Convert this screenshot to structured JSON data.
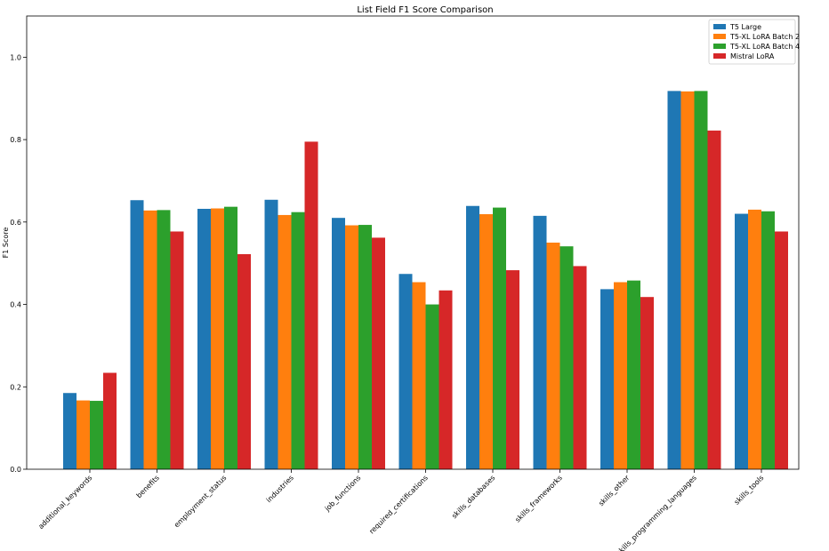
{
  "chart_data": {
    "type": "bar",
    "title": "List Field F1 Score Comparison",
    "xlabel": "",
    "ylabel": "F1 Score",
    "ylim": [
      0,
      1.1
    ],
    "yticks": [
      0.0,
      0.2,
      0.4,
      0.6,
      0.8,
      1.0
    ],
    "ytick_labels": [
      "0.0",
      "0.2",
      "0.4",
      "0.6",
      "0.8",
      "1.0"
    ],
    "legend_position": "top-right",
    "categories": [
      "additional_keywords",
      "benefits",
      "employment_status",
      "industries",
      "job_functions",
      "required_certifications",
      "skills_databases",
      "skills_frameworks",
      "skills_other",
      "skills_programming_languages",
      "skills_tools"
    ],
    "series": [
      {
        "name": "T5 Large",
        "color": "#1f77b4",
        "values": [
          0.185,
          0.653,
          0.632,
          0.654,
          0.61,
          0.474,
          0.639,
          0.615,
          0.437,
          0.918,
          0.62
        ]
      },
      {
        "name": "T5-XL LoRA Batch 2",
        "color": "#ff7f0e",
        "values": [
          0.167,
          0.628,
          0.633,
          0.617,
          0.592,
          0.454,
          0.619,
          0.55,
          0.454,
          0.917,
          0.63
        ]
      },
      {
        "name": "T5-XL LoRA Batch 4",
        "color": "#2ca02c",
        "values": [
          0.166,
          0.629,
          0.637,
          0.624,
          0.593,
          0.4,
          0.635,
          0.541,
          0.458,
          0.918,
          0.626
        ]
      },
      {
        "name": "Mistral LoRA",
        "color": "#d62728",
        "values": [
          0.234,
          0.577,
          0.522,
          0.795,
          0.562,
          0.434,
          0.483,
          0.493,
          0.418,
          0.822,
          0.577
        ]
      }
    ]
  }
}
